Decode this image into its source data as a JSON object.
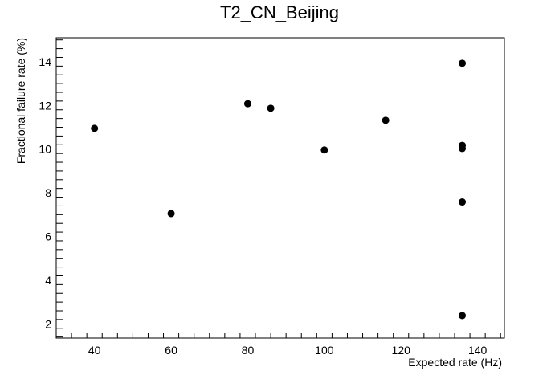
{
  "chart_data": {
    "type": "scatter",
    "title": "T2_CN_Beijing",
    "xlabel": "Expected rate (Hz)",
    "ylabel": "Fractional failure rate (%)",
    "xlim": [
      30,
      147
    ],
    "ylim": [
      1.35,
      15.1
    ],
    "xticks": [
      40,
      60,
      80,
      100,
      120,
      140
    ],
    "yticks": [
      2,
      4,
      6,
      8,
      10,
      12,
      14
    ],
    "grid": false,
    "legend": "none",
    "marker_color": "#000000",
    "points": [
      {
        "x": 40,
        "y": 10.95
      },
      {
        "x": 60,
        "y": 7.05
      },
      {
        "x": 80,
        "y": 12.08
      },
      {
        "x": 86,
        "y": 11.87
      },
      {
        "x": 100,
        "y": 9.96
      },
      {
        "x": 116,
        "y": 11.32
      },
      {
        "x": 136,
        "y": 13.93
      },
      {
        "x": 136,
        "y": 10.17
      },
      {
        "x": 136,
        "y": 10.03
      },
      {
        "x": 136,
        "y": 7.58
      },
      {
        "x": 136,
        "y": 2.38
      }
    ]
  }
}
